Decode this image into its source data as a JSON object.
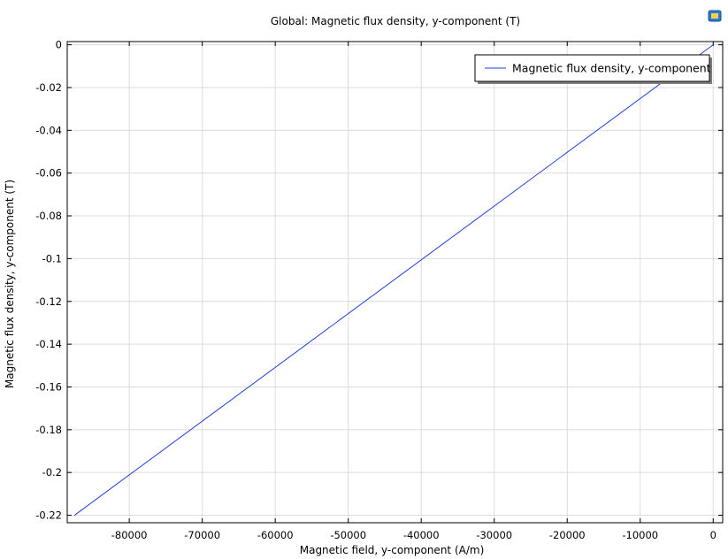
{
  "window": {
    "corner_icon": "image-icon"
  },
  "chart_data": {
    "type": "line",
    "title": "Global: Magnetic flux density, y-component (T)",
    "xlabel": "Magnetic field, y-component (A/m)",
    "ylabel": "Magnetic flux density, y-component (T)",
    "xlim": [
      -88500,
      1300
    ],
    "ylim": [
      -0.2235,
      0.0015
    ],
    "xticks": [
      -80000,
      -70000,
      -60000,
      -50000,
      -40000,
      -30000,
      -20000,
      -10000,
      0
    ],
    "xtick_labels": [
      "-80000",
      "-70000",
      "-60000",
      "-50000",
      "-40000",
      "-30000",
      "-20000",
      "-10000",
      "0"
    ],
    "yticks": [
      0,
      -0.02,
      -0.04,
      -0.06,
      -0.08,
      -0.1,
      -0.12,
      -0.14,
      -0.16,
      -0.18,
      -0.2,
      -0.22
    ],
    "ytick_labels": [
      "0",
      "-0.02",
      "-0.04",
      "-0.06",
      "-0.08",
      "-0.1",
      "-0.12",
      "-0.14",
      "-0.16",
      "-0.18",
      "-0.2",
      "-0.22"
    ],
    "grid": true,
    "legend_position": "top-right",
    "series": [
      {
        "name": "Magnetic flux density, y-component",
        "color": "#1f3fd8",
        "x": [
          -87500,
          0
        ],
        "y": [
          -0.22,
          0
        ]
      }
    ]
  }
}
